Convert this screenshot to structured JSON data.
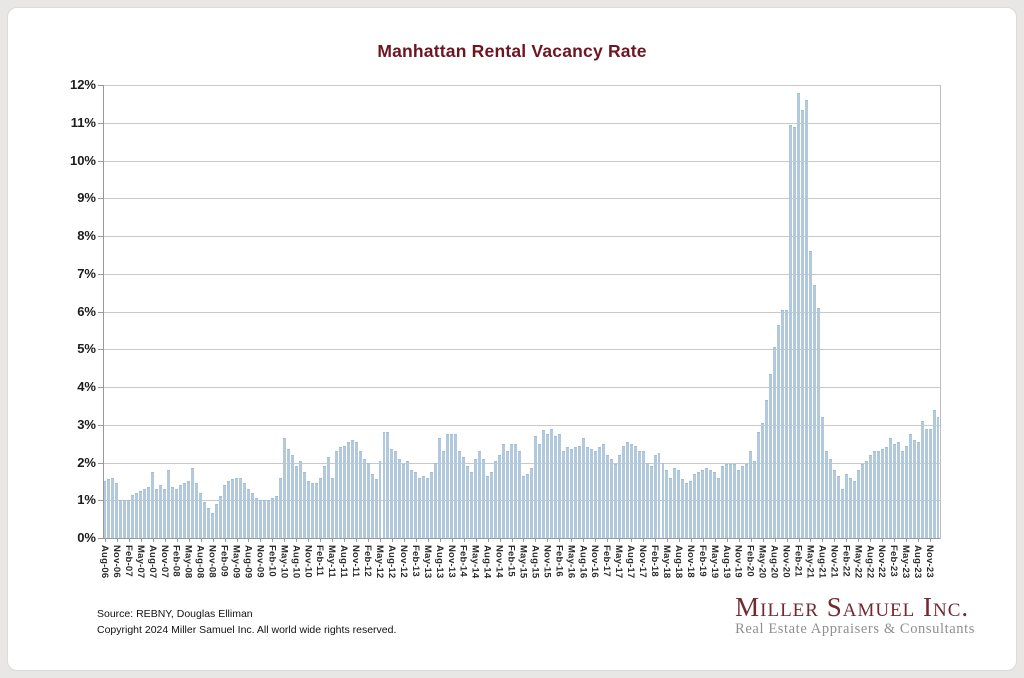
{
  "chart_data": {
    "type": "bar",
    "title": "Manhattan Rental Vacancy Rate",
    "xlabel": "",
    "ylabel": "",
    "ylim": [
      0,
      12
    ],
    "grid": true,
    "legend": "none",
    "bar_color": "#b2c9dd",
    "y_tick_labels": [
      "0%",
      "1%",
      "2%",
      "3%",
      "4%",
      "5%",
      "6%",
      "7%",
      "8%",
      "9%",
      "10%",
      "11%",
      "12%"
    ],
    "x_start": "Aug-06",
    "x_end": "Jan-24",
    "x_interval": "monthly",
    "x_tick_every": 3,
    "x_tick_labels": [
      "Aug-06",
      "Nov-06",
      "Feb-07",
      "May-07",
      "Aug-07",
      "Nov-07",
      "Feb-08",
      "May-08",
      "Aug-08",
      "Nov-08",
      "Feb-09",
      "May-09",
      "Aug-09",
      "Nov-09",
      "Feb-10",
      "May-10",
      "Aug-10",
      "Nov-10",
      "Feb-11",
      "May-11",
      "Aug-11",
      "Nov-11",
      "Feb-12",
      "May-12",
      "Aug-12",
      "Nov-12",
      "Feb-13",
      "May-13",
      "Aug-13",
      "Nov-13",
      "Feb-14",
      "May-14",
      "Aug-14",
      "Nov-14",
      "Feb-15",
      "May-15",
      "Aug-15",
      "Nov-15",
      "Feb-16",
      "May-16",
      "Aug-16",
      "Nov-16",
      "Feb-17",
      "May-17",
      "Aug-17",
      "Nov-17",
      "Feb-18",
      "May-18",
      "Aug-18",
      "Nov-18",
      "Feb-19",
      "May-19",
      "Aug-19",
      "Nov-19",
      "Feb-20",
      "May-20",
      "Aug-20",
      "Nov-20",
      "Feb-21",
      "May-21",
      "Aug-21",
      "Nov-21",
      "Feb-22",
      "May-22",
      "Aug-22",
      "Nov-22",
      "Feb-23",
      "May-23",
      "Aug-23",
      "Nov-23"
    ],
    "series_name": "Vacancy rate (%)",
    "values": [
      1.5,
      1.55,
      1.6,
      1.45,
      1.0,
      1.0,
      1.0,
      1.15,
      1.2,
      1.25,
      1.3,
      1.35,
      1.75,
      1.3,
      1.4,
      1.3,
      1.8,
      1.35,
      1.3,
      1.4,
      1.45,
      1.5,
      1.85,
      1.45,
      1.2,
      0.95,
      0.8,
      0.65,
      0.9,
      1.1,
      1.4,
      1.5,
      1.55,
      1.6,
      1.6,
      1.45,
      1.3,
      1.2,
      1.05,
      1.0,
      1.0,
      1.0,
      1.05,
      1.1,
      1.6,
      2.65,
      2.35,
      2.2,
      1.9,
      2.05,
      1.75,
      1.5,
      1.45,
      1.45,
      1.6,
      1.9,
      2.15,
      1.6,
      2.3,
      2.4,
      2.45,
      2.55,
      2.6,
      2.55,
      2.3,
      2.1,
      2.0,
      1.7,
      1.55,
      2.05,
      2.8,
      2.8,
      2.35,
      2.3,
      2.1,
      1.95,
      2.05,
      1.8,
      1.75,
      1.6,
      1.65,
      1.6,
      1.75,
      2.0,
      2.65,
      2.3,
      2.75,
      2.75,
      2.75,
      2.3,
      2.15,
      1.9,
      1.75,
      2.1,
      2.3,
      2.1,
      1.65,
      1.75,
      2.05,
      2.2,
      2.5,
      2.3,
      2.5,
      2.5,
      2.3,
      1.65,
      1.7,
      1.85,
      2.7,
      2.5,
      2.85,
      2.75,
      2.9,
      2.7,
      2.75,
      2.3,
      2.4,
      2.35,
      2.4,
      2.45,
      2.65,
      2.4,
      2.35,
      2.3,
      2.4,
      2.5,
      2.2,
      2.1,
      1.95,
      2.2,
      2.45,
      2.55,
      2.5,
      2.45,
      2.3,
      2.3,
      2.0,
      1.9,
      2.2,
      2.25,
      2.0,
      1.8,
      1.6,
      1.85,
      1.8,
      1.55,
      1.45,
      1.5,
      1.7,
      1.75,
      1.8,
      1.85,
      1.8,
      1.75,
      1.6,
      1.9,
      1.95,
      1.95,
      1.95,
      1.8,
      1.9,
      1.95,
      2.3,
      2.05,
      2.8,
      3.05,
      3.65,
      4.35,
      5.05,
      5.65,
      6.05,
      6.05,
      10.95,
      10.9,
      11.8,
      11.35,
      11.6,
      7.6,
      6.7,
      6.1,
      3.2,
      2.3,
      2.1,
      1.8,
      1.65,
      1.3,
      1.7,
      1.6,
      1.5,
      1.8,
      1.95,
      2.05,
      2.2,
      2.3,
      2.3,
      2.35,
      2.4,
      2.65,
      2.5,
      2.55,
      2.3,
      2.45,
      2.75,
      2.6,
      2.55,
      3.1,
      2.9,
      2.9,
      3.4,
      3.2
    ]
  },
  "footer": {
    "source": "Source: REBNY, Douglas Elliman",
    "copyright": "Copyright 2024 Miller Samuel Inc.  All world wide rights reserved.",
    "logo_name": "Miller Samuel Inc.",
    "logo_tagline": "Real Estate Appraisers & Consultants"
  },
  "colors": {
    "title": "#6e1522",
    "bar": "#b2c9dd",
    "gridline": "#c9c9c9",
    "axis": "#9a9a9a",
    "logo": "#722a31",
    "tagline": "#8f8f8f"
  }
}
